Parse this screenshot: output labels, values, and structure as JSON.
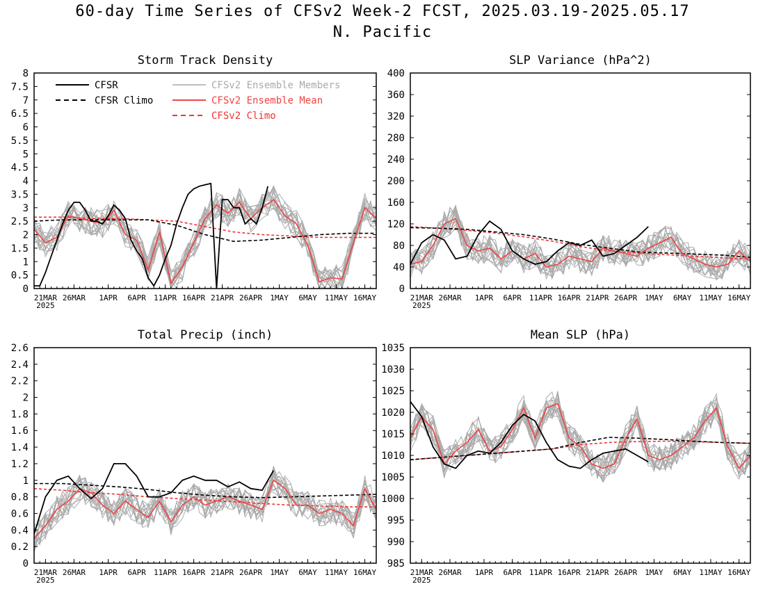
{
  "figure": {
    "title": "60-day Time Series of CFSv2 Week-2 FCST, 2025.03.19-2025.05.17",
    "subtitle": "N. Pacific"
  },
  "legend": {
    "entries": [
      {
        "label": "CFSR",
        "color": "#000000",
        "style": "solid"
      },
      {
        "label": "CFSR Climo",
        "color": "#000000",
        "style": "dashed"
      },
      {
        "label": "CFSv2 Ensemble Members",
        "color": "#aaaaaa",
        "style": "solid"
      },
      {
        "label": "CFSv2 Ensemble Mean",
        "color": "#ee4444",
        "style": "solid"
      },
      {
        "label": "CFSv2 Climo",
        "color": "#ee3333",
        "style": "dashed"
      }
    ]
  },
  "x_axis": {
    "tick_labels": [
      "21MAR",
      "26MAR",
      "1APR",
      "6APR",
      "11APR",
      "16APR",
      "21APR",
      "26APR",
      "1MAY",
      "6MAY",
      "11MAY",
      "16MAY"
    ],
    "year_label": "2025",
    "range_days": [
      0,
      60
    ]
  },
  "chart_data": [
    {
      "type": "line",
      "title": "Storm Track Density",
      "ylim": [
        0,
        8
      ],
      "yticks": [
        "0",
        "0.5",
        "1",
        "1.5",
        "2",
        "2.5",
        "3",
        "3.5",
        "4",
        "4.5",
        "5",
        "5.5",
        "6",
        "6.5",
        "7",
        "7.5",
        "8"
      ],
      "has_legend": true,
      "series": [
        {
          "name": "CFSR",
          "x": [
            0,
            1,
            2,
            3,
            4,
            5,
            6,
            7,
            8,
            9,
            10,
            11,
            12,
            13,
            14,
            15,
            16,
            17,
            18,
            19,
            20,
            21,
            22,
            23,
            24,
            25,
            26,
            27,
            28,
            29,
            30,
            31,
            32,
            33,
            34,
            35,
            36,
            37,
            38,
            39,
            40,
            41,
            42,
            43
          ],
          "values": [
            0.1,
            0.1,
            0.6,
            1.2,
            1.8,
            2.4,
            2.9,
            3.2,
            3.2,
            2.9,
            2.5,
            2.5,
            2.4,
            2.7,
            3.1,
            2.9,
            2.6,
            1.8,
            1.4,
            1.1,
            0.4,
            0.1,
            0.5,
            1.1,
            1.6,
            2.4,
            3.0,
            3.5,
            3.7,
            3.8,
            3.85,
            3.9,
            0.0,
            3.3,
            3.3,
            3.0,
            3.0,
            2.4,
            2.6,
            2.4,
            3.0,
            3.8,
            null,
            null
          ]
        },
        {
          "name": "CFSR Climo",
          "x": [
            0,
            5,
            10,
            15,
            20,
            25,
            30,
            35,
            40,
            45,
            50,
            55,
            60
          ],
          "values": [
            2.5,
            2.55,
            2.55,
            2.55,
            2.55,
            2.35,
            2.0,
            1.75,
            1.8,
            1.9,
            2.0,
            2.05,
            2.05
          ]
        },
        {
          "name": "CFSv2 Ensemble Mean",
          "x": [
            0,
            2,
            4,
            6,
            8,
            10,
            12,
            14,
            16,
            18,
            20,
            22,
            24,
            26,
            28,
            30,
            32,
            34,
            36,
            38,
            40,
            42,
            44,
            46,
            48,
            50,
            52,
            54,
            56,
            58,
            60
          ],
          "values": [
            2.2,
            1.7,
            1.9,
            2.7,
            2.6,
            2.5,
            2.4,
            2.9,
            2.0,
            1.8,
            0.7,
            2.1,
            0.2,
            0.8,
            1.7,
            2.6,
            3.1,
            2.8,
            3.2,
            2.6,
            3.0,
            3.3,
            2.7,
            2.4,
            1.6,
            0.25,
            0.4,
            0.35,
            1.7,
            3.0,
            2.6
          ]
        },
        {
          "name": "CFSv2 Climo",
          "x": [
            0,
            5,
            10,
            15,
            20,
            25,
            30,
            35,
            40,
            45,
            50,
            55,
            60
          ],
          "values": [
            2.65,
            2.65,
            2.6,
            2.6,
            2.55,
            2.5,
            2.3,
            2.1,
            2.0,
            1.95,
            1.9,
            1.9,
            1.9
          ]
        }
      ]
    },
    {
      "type": "line",
      "title": "SLP Variance (hPa^2)",
      "ylim": [
        0,
        400
      ],
      "yticks": [
        "0",
        "40",
        "80",
        "120",
        "160",
        "200",
        "240",
        "280",
        "320",
        "360",
        "400"
      ],
      "has_legend": false,
      "series": [
        {
          "name": "CFSR",
          "x": [
            0,
            2,
            4,
            6,
            8,
            10,
            12,
            14,
            16,
            18,
            20,
            22,
            24,
            26,
            28,
            30,
            32,
            34,
            36,
            38,
            40,
            42
          ],
          "values": [
            45,
            85,
            100,
            90,
            55,
            60,
            100,
            125,
            110,
            70,
            55,
            45,
            50,
            70,
            85,
            80,
            90,
            60,
            65,
            80,
            95,
            115
          ]
        },
        {
          "name": "CFSR Climo",
          "x": [
            0,
            5,
            10,
            15,
            20,
            25,
            30,
            35,
            40,
            45,
            50,
            55,
            60
          ],
          "values": [
            113,
            112,
            110,
            105,
            100,
            92,
            82,
            75,
            68,
            66,
            64,
            62,
            58
          ]
        },
        {
          "name": "CFSv2 Ensemble Mean",
          "x": [
            0,
            2,
            4,
            6,
            8,
            10,
            12,
            14,
            16,
            18,
            20,
            22,
            24,
            26,
            28,
            30,
            32,
            34,
            36,
            38,
            40,
            42,
            44,
            46,
            48,
            50,
            52,
            54,
            56,
            58,
            60
          ],
          "values": [
            45,
            50,
            80,
            120,
            130,
            80,
            70,
            75,
            55,
            70,
            55,
            65,
            40,
            45,
            60,
            55,
            50,
            75,
            70,
            65,
            60,
            75,
            85,
            95,
            65,
            55,
            45,
            40,
            45,
            70,
            50
          ]
        },
        {
          "name": "CFSv2 Climo",
          "x": [
            0,
            5,
            10,
            15,
            20,
            25,
            30,
            35,
            40,
            45,
            50,
            55,
            60
          ],
          "values": [
            115,
            112,
            108,
            103,
            96,
            88,
            78,
            70,
            66,
            63,
            60,
            57,
            55
          ]
        }
      ]
    },
    {
      "type": "line",
      "title": "Total Precip (inch)",
      "ylim": [
        0,
        2.6
      ],
      "yticks": [
        "0",
        "0.2",
        "0.4",
        "0.6",
        "0.8",
        "1",
        "1.2",
        "1.4",
        "1.6",
        "1.8",
        "2",
        "2.2",
        "2.4",
        "2.6"
      ],
      "has_legend": false,
      "series": [
        {
          "name": "CFSR",
          "x": [
            0,
            2,
            4,
            6,
            8,
            10,
            12,
            14,
            16,
            18,
            20,
            22,
            24,
            26,
            28,
            30,
            32,
            34,
            36,
            38,
            40,
            42
          ],
          "values": [
            0.35,
            0.8,
            1.0,
            1.05,
            0.9,
            0.78,
            0.9,
            1.2,
            1.2,
            1.05,
            0.8,
            0.8,
            0.85,
            1.0,
            1.05,
            1.0,
            1.0,
            0.92,
            0.98,
            0.9,
            0.88,
            1.12
          ]
        },
        {
          "name": "CFSR Climo",
          "x": [
            0,
            5,
            10,
            15,
            20,
            25,
            30,
            35,
            40,
            45,
            50,
            55,
            60
          ],
          "values": [
            0.96,
            0.96,
            0.94,
            0.92,
            0.89,
            0.85,
            0.82,
            0.8,
            0.79,
            0.8,
            0.81,
            0.82,
            0.83
          ]
        },
        {
          "name": "CFSv2 Ensemble Mean",
          "x": [
            0,
            2,
            4,
            6,
            8,
            10,
            12,
            14,
            16,
            18,
            20,
            22,
            24,
            26,
            28,
            30,
            32,
            34,
            36,
            38,
            40,
            42,
            44,
            46,
            48,
            50,
            52,
            54,
            56,
            58,
            60
          ],
          "values": [
            0.3,
            0.45,
            0.65,
            0.75,
            0.9,
            0.85,
            0.7,
            0.6,
            0.75,
            0.65,
            0.55,
            0.75,
            0.5,
            0.7,
            0.8,
            0.7,
            0.75,
            0.8,
            0.75,
            0.7,
            0.65,
            1.0,
            0.9,
            0.7,
            0.7,
            0.6,
            0.65,
            0.6,
            0.45,
            0.9,
            0.65
          ]
        },
        {
          "name": "CFSv2 Climo",
          "x": [
            0,
            5,
            10,
            15,
            20,
            25,
            30,
            35,
            40,
            45,
            50,
            55,
            60
          ],
          "values": [
            0.9,
            0.88,
            0.85,
            0.83,
            0.8,
            0.78,
            0.76,
            0.74,
            0.72,
            0.7,
            0.69,
            0.68,
            0.68
          ]
        }
      ]
    },
    {
      "type": "line",
      "title": "Mean SLP (hPa)",
      "ylim": [
        985,
        1035
      ],
      "yticks": [
        "985",
        "990",
        "995",
        "1000",
        "1005",
        "1010",
        "1015",
        "1020",
        "1025",
        "1030",
        "1035"
      ],
      "has_legend": false,
      "series": [
        {
          "name": "CFSR",
          "x": [
            0,
            2,
            4,
            6,
            8,
            10,
            12,
            14,
            16,
            18,
            20,
            22,
            24,
            26,
            28,
            30,
            32,
            34,
            36,
            38,
            40,
            42
          ],
          "values": [
            1022.5,
            1019,
            1012,
            1008,
            1007,
            1010,
            1011,
            1010.5,
            1013,
            1017,
            1019.5,
            1018,
            1013,
            1009,
            1007.5,
            1007,
            1009,
            1010.5,
            1011,
            1011.5,
            1010,
            1008.5
          ]
        },
        {
          "name": "CFSR Climo",
          "x": [
            0,
            5,
            10,
            15,
            20,
            25,
            30,
            35,
            40,
            45,
            50,
            55,
            60
          ],
          "values": [
            1009,
            1009.5,
            1010,
            1010.5,
            1011,
            1011.5,
            1013,
            1014.2,
            1014,
            1013.7,
            1013.3,
            1013,
            1012.8
          ]
        },
        {
          "name": "CFSv2 Ensemble Mean",
          "x": [
            0,
            2,
            4,
            6,
            8,
            10,
            12,
            14,
            16,
            18,
            20,
            22,
            24,
            26,
            28,
            30,
            32,
            34,
            36,
            38,
            40,
            42,
            44,
            46,
            48,
            50,
            52,
            54,
            56,
            58,
            60
          ],
          "values": [
            1014,
            1019,
            1016,
            1008,
            1011,
            1013,
            1016,
            1011,
            1012,
            1016,
            1021,
            1014,
            1021,
            1022,
            1014,
            1012,
            1008,
            1007,
            1008,
            1014,
            1018.5,
            1010,
            1009,
            1010,
            1012,
            1014,
            1018,
            1021,
            1012,
            1007,
            1010
          ]
        },
        {
          "name": "CFSv2 Climo",
          "x": [
            0,
            5,
            10,
            15,
            20,
            25,
            30,
            35,
            40,
            45,
            50,
            55,
            60
          ],
          "values": [
            1009,
            1009.5,
            1010,
            1010.5,
            1011,
            1011.5,
            1012.5,
            1013,
            1013.2,
            1013.3,
            1013.2,
            1013,
            1012.8
          ]
        }
      ]
    }
  ]
}
